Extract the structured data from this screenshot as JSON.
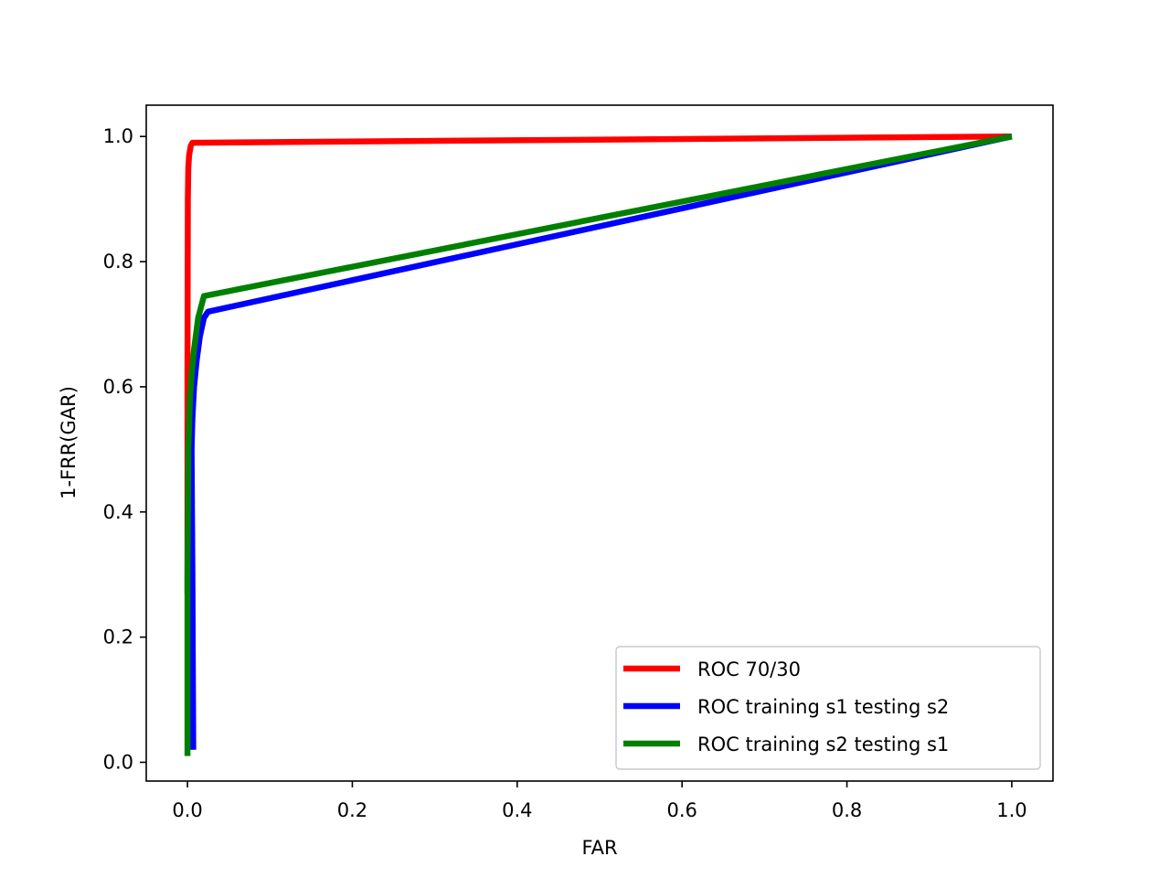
{
  "chart_data": {
    "type": "line",
    "title": "",
    "xlabel": "FAR",
    "ylabel": "1-FRR(GAR)",
    "xlim": [
      -0.05,
      1.05
    ],
    "ylim": [
      -0.03,
      1.05
    ],
    "xticks": [
      0.0,
      0.2,
      0.4,
      0.6,
      0.8,
      1.0
    ],
    "xtick_labels": [
      "0.0",
      "0.2",
      "0.4",
      "0.6",
      "0.8",
      "1.0"
    ],
    "yticks": [
      0.0,
      0.2,
      0.4,
      0.6,
      0.8,
      1.0
    ],
    "ytick_labels": [
      "0.0",
      "0.2",
      "0.4",
      "0.6",
      "0.8",
      "1.0"
    ],
    "grid": false,
    "legend_position": "lower-right",
    "series": [
      {
        "name": "ROC 70/30",
        "color": "#ff0000",
        "x": [
          0.0,
          0.0,
          0.0005,
          0.001,
          0.002,
          0.004,
          0.006,
          1.0
        ],
        "y": [
          0.27,
          0.62,
          0.9,
          0.95,
          0.97,
          0.985,
          0.99,
          1.0
        ]
      },
      {
        "name": "ROC training s1 testing s2",
        "color": "#0000ff",
        "x": [
          0.007,
          0.006,
          0.005,
          0.006,
          0.008,
          0.011,
          0.015,
          0.02,
          0.025,
          1.0
        ],
        "y": [
          0.02,
          0.3,
          0.5,
          0.55,
          0.6,
          0.64,
          0.68,
          0.71,
          0.72,
          1.0
        ]
      },
      {
        "name": "ROC training s2 testing s1",
        "color": "#008000",
        "x": [
          0.0,
          0.0,
          0.001,
          0.003,
          0.005,
          0.008,
          0.013,
          0.02,
          1.0
        ],
        "y": [
          0.01,
          0.3,
          0.5,
          0.58,
          0.62,
          0.66,
          0.71,
          0.745,
          1.0
        ]
      }
    ]
  }
}
